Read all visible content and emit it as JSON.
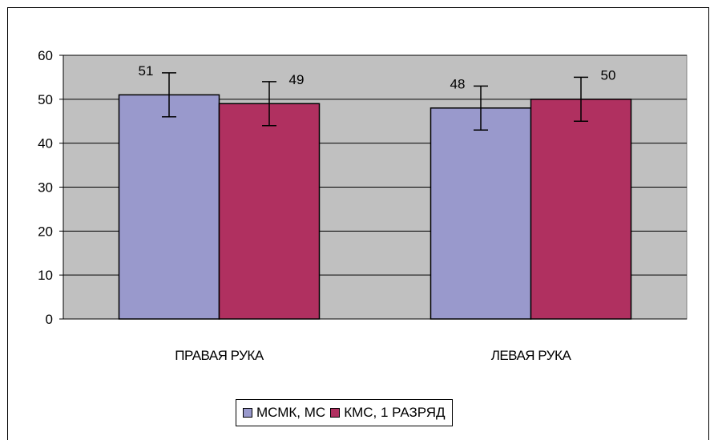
{
  "chart_data": {
    "type": "bar",
    "categories": [
      "ПРАВАЯ РУКА",
      "ЛЕВАЯ РУКА"
    ],
    "series": [
      {
        "name": "МСМК, МС",
        "values": [
          51,
          48
        ],
        "color": "#9999CC",
        "error": [
          5,
          5
        ]
      },
      {
        "name": "КМС, 1 РАЗРЯД",
        "values": [
          49,
          50
        ],
        "color": "#B03060",
        "error": [
          5,
          5
        ]
      }
    ],
    "data_labels": [
      [
        "51",
        "48"
      ],
      [
        "49",
        "50"
      ]
    ],
    "ylim": [
      0,
      60
    ],
    "yticks": [
      0,
      10,
      20,
      30,
      40,
      50,
      60
    ],
    "grid": true,
    "plot_background": "#C0C0C0",
    "legend_position": "bottom"
  }
}
